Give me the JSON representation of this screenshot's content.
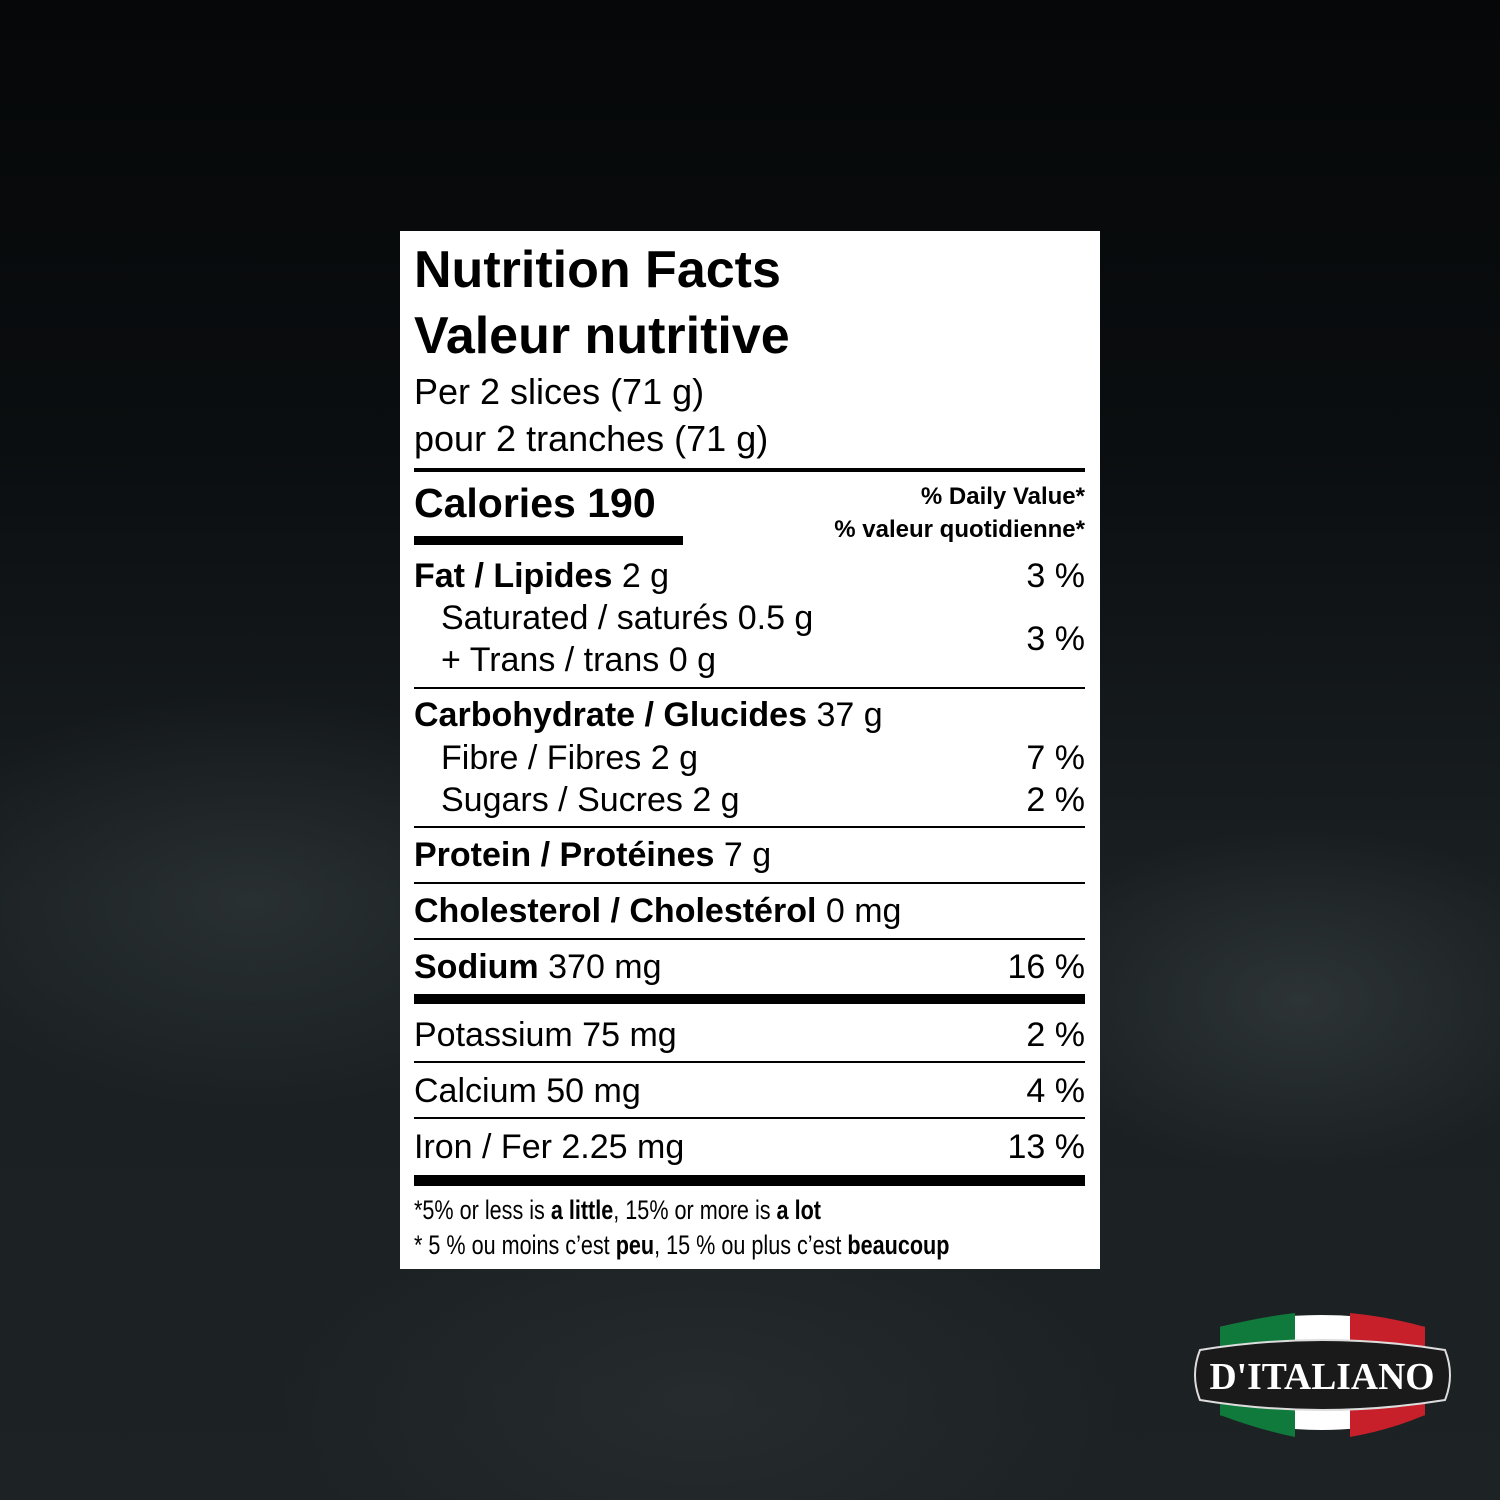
{
  "label": {
    "title_en": "Nutrition Facts",
    "title_fr": "Valeur nutritive",
    "serving_en": "Per 2 slices (71 g)",
    "serving_fr": "pour 2 tranches (71 g)",
    "calories_label": "Calories",
    "calories_value": "190",
    "dv_en": "% Daily Value*",
    "dv_fr": "% valeur quotidienne*",
    "rows": [
      {
        "name": "Fat / Lipides",
        "amount": "2 g",
        "dv": "3 %"
      },
      {
        "name": "Saturated / saturés 0.5 g",
        "trans": "+ Trans / trans 0 g",
        "dv": "3 %"
      },
      {
        "name": "Carbohydrate / Glucides",
        "amount": "37 g"
      },
      {
        "name": "Fibre / Fibres 2 g",
        "dv": "7 %"
      },
      {
        "name": "Sugars / Sucres 2 g",
        "dv": "2 %"
      },
      {
        "name": "Protein / Protéines",
        "amount": "7 g"
      },
      {
        "name": "Cholesterol / Cholestérol",
        "amount": "0 mg"
      },
      {
        "name": "Sodium",
        "amount": "370 mg",
        "dv": "16 %"
      },
      {
        "name": "Potassium 75 mg",
        "dv": "2 %"
      },
      {
        "name": "Calcium 50 mg",
        "dv": "4 %"
      },
      {
        "name": "Iron / Fer 2.25 mg",
        "dv": "13 %"
      }
    ],
    "footnote_en": {
      "a": "*5% or less is ",
      "b": "a little",
      ", ": ", ",
      "c": "15% or more is ",
      "d": "a lot"
    },
    "footnote_fr": {
      "a": "* 5 % ou moins c’est ",
      "b": "peu",
      "c": ", 15 % ou plus c’est ",
      "d": "beaucoup"
    }
  },
  "logo": {
    "text": "D'ITALIANO",
    "colors": {
      "green": "#0f7a3c",
      "white": "#ffffff",
      "red": "#c8202a",
      "badge": "#1a1a1a"
    }
  }
}
